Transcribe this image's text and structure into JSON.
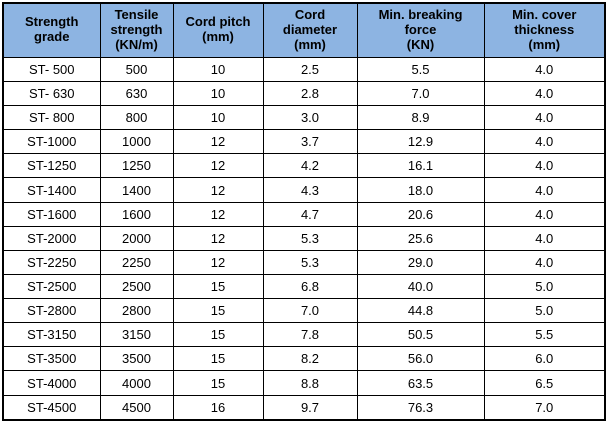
{
  "table": {
    "name": "steel-cord-conveyor-belt-specifications",
    "header_bg_color": "#8db4e2",
    "border_color": "#000000",
    "text_color": "#000000",
    "headers": [
      {
        "key": "strength-grade",
        "label": "Strength\ngrade"
      },
      {
        "key": "tensile-strength",
        "label": "Tensile\nstrength\n(KN/m)"
      },
      {
        "key": "cord-pitch",
        "label": "Cord pitch\n(mm)"
      },
      {
        "key": "cord-diameter",
        "label": "Cord\ndiameter\n(mm)"
      },
      {
        "key": "min-breaking-force",
        "label": "Min. breaking\nforce\n(KN)"
      },
      {
        "key": "min-cover-thickness",
        "label": "Min. cover\nthickness\n(mm)"
      }
    ],
    "rows": [
      [
        "ST- 500",
        "500",
        "10",
        "2.5",
        "5.5",
        "4.0"
      ],
      [
        "ST- 630",
        "630",
        "10",
        "2.8",
        "7.0",
        "4.0"
      ],
      [
        "ST- 800",
        "800",
        "10",
        "3.0",
        "8.9",
        "4.0"
      ],
      [
        "ST-1000",
        "1000",
        "12",
        "3.7",
        "12.9",
        "4.0"
      ],
      [
        "ST-1250",
        "1250",
        "12",
        "4.2",
        "16.1",
        "4.0"
      ],
      [
        "ST-1400",
        "1400",
        "12",
        "4.3",
        "18.0",
        "4.0"
      ],
      [
        "ST-1600",
        "1600",
        "12",
        "4.7",
        "20.6",
        "4.0"
      ],
      [
        "ST-2000",
        "2000",
        "12",
        "5.3",
        "25.6",
        "4.0"
      ],
      [
        "ST-2250",
        "2250",
        "12",
        "5.3",
        "29.0",
        "4.0"
      ],
      [
        "ST-2500",
        "2500",
        "15",
        "6.8",
        "40.0",
        "5.0"
      ],
      [
        "ST-2800",
        "2800",
        "15",
        "7.0",
        "44.8",
        "5.0"
      ],
      [
        "ST-3150",
        "3150",
        "15",
        "7.8",
        "50.5",
        "5.5"
      ],
      [
        "ST-3500",
        "3500",
        "15",
        "8.2",
        "56.0",
        "6.0"
      ],
      [
        "ST-4000",
        "4000",
        "15",
        "8.8",
        "63.5",
        "6.5"
      ],
      [
        "ST-4500",
        "4500",
        "16",
        "9.7",
        "76.3",
        "7.0"
      ]
    ]
  }
}
